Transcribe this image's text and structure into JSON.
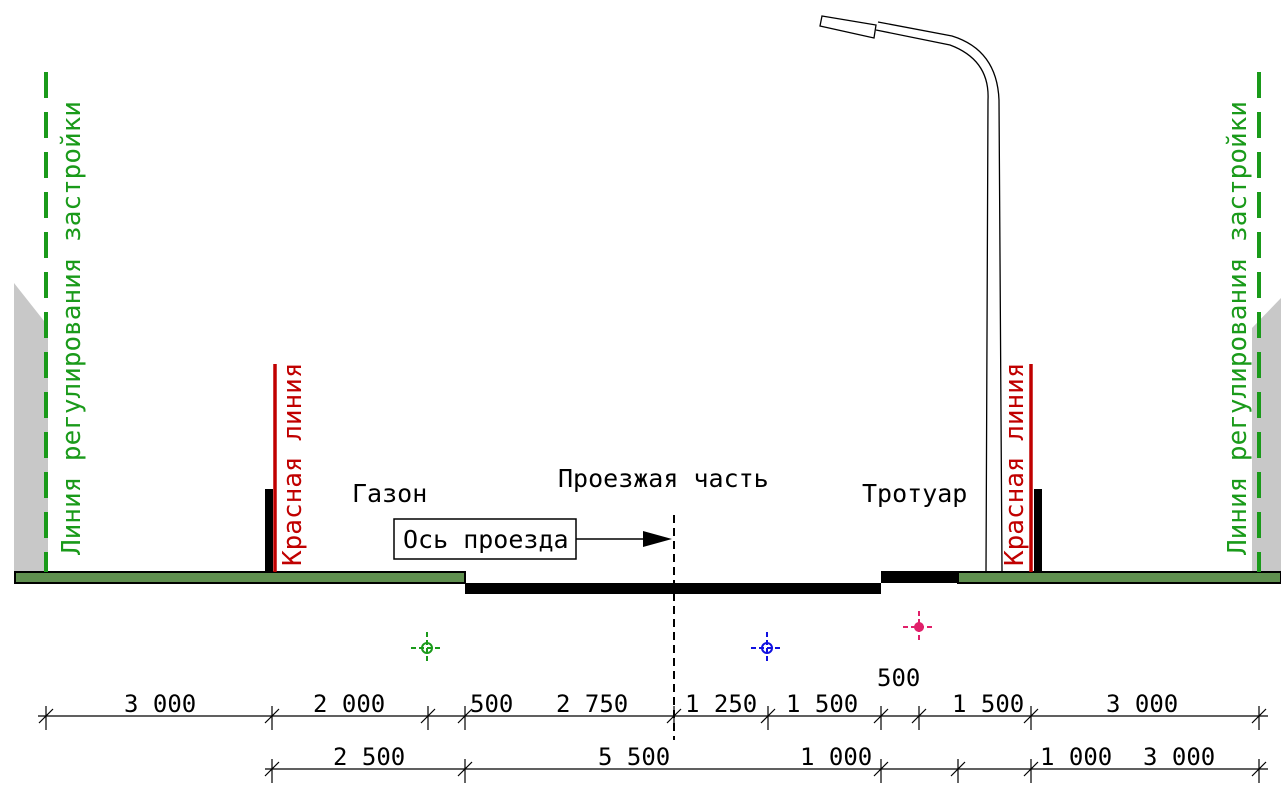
{
  "labels": {
    "left_building_line": "Линия регулирования застройки",
    "right_building_line": "Линия регулирования застройки",
    "left_red_line": "Красная линия",
    "right_red_line": "Красная линия",
    "lawn": "Газон",
    "carriageway": "Проезжая часть",
    "sidewalk": "Тротуар",
    "axis": "Ось проезда"
  },
  "dimensions": {
    "row1": [
      "3 000",
      "2 000",
      "500",
      "2 750",
      "1 250",
      "1 500",
      "500",
      "1 500",
      "3 000"
    ],
    "row2": [
      "2 500",
      "5 500",
      "1 000",
      "1 000",
      "3 000"
    ]
  },
  "colors": {
    "building_line": "#1a9a1a",
    "red_line": "#c00000",
    "lawn": "#5f8f4f",
    "pavement": "#000000",
    "building": "#c8c8c8",
    "marker_green": "#1a9a1a",
    "marker_blue": "#1010e0",
    "marker_pink": "#e0206a"
  }
}
